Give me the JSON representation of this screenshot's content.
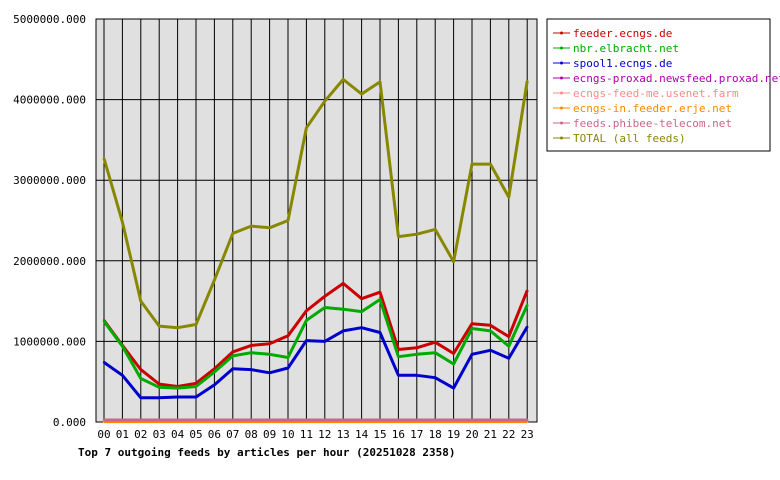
{
  "chart_data": {
    "type": "line",
    "title": "Top 7 outgoing feeds by articles per hour (20251028 2358)",
    "xlabel": "",
    "ylabel": "",
    "categories": [
      "00",
      "01",
      "02",
      "03",
      "04",
      "05",
      "06",
      "07",
      "08",
      "09",
      "10",
      "11",
      "12",
      "13",
      "14",
      "15",
      "16",
      "17",
      "18",
      "19",
      "20",
      "21",
      "22",
      "23"
    ],
    "ylim": [
      0,
      5000000
    ],
    "yticks": [
      "0.000",
      "1000000.000",
      "2000000.000",
      "3000000.000",
      "4000000.000",
      "5000000.000"
    ],
    "ytick_values": [
      0,
      1000000,
      2000000,
      3000000,
      4000000,
      5000000
    ],
    "grid": true,
    "legend_position": "right",
    "series": [
      {
        "name": "feeder.ecngs.de",
        "color": "#cc0000",
        "values": [
          1260000,
          950000,
          650000,
          470000,
          440000,
          480000,
          660000,
          870000,
          950000,
          970000,
          1070000,
          1380000,
          1560000,
          1720000,
          1530000,
          1610000,
          900000,
          920000,
          990000,
          850000,
          1220000,
          1200000,
          1060000,
          1630000
        ]
      },
      {
        "name": "nbr.elbracht.net",
        "color": "#00aa00",
        "values": [
          1250000,
          940000,
          540000,
          430000,
          420000,
          440000,
          620000,
          820000,
          860000,
          840000,
          800000,
          1260000,
          1420000,
          1400000,
          1370000,
          1520000,
          810000,
          840000,
          860000,
          720000,
          1160000,
          1130000,
          940000,
          1450000
        ]
      },
      {
        "name": "spool1.ecngs.de",
        "color": "#0000cc",
        "values": [
          740000,
          580000,
          300000,
          300000,
          310000,
          310000,
          460000,
          660000,
          650000,
          610000,
          670000,
          1010000,
          1000000,
          1130000,
          1170000,
          1110000,
          580000,
          580000,
          550000,
          420000,
          840000,
          890000,
          790000,
          1180000
        ]
      },
      {
        "name": "ecngs-proxad.newsfeed.proxad.net",
        "color": "#aa00aa",
        "values": [
          15000,
          15000,
          15000,
          15000,
          15000,
          15000,
          15000,
          15000,
          15000,
          15000,
          15000,
          15000,
          15000,
          15000,
          15000,
          15000,
          15000,
          15000,
          15000,
          15000,
          15000,
          15000,
          15000,
          15000
        ]
      },
      {
        "name": "ecngs-feed-me.usenet.farm",
        "color": "#ff8888",
        "values": [
          20000,
          20000,
          20000,
          20000,
          20000,
          20000,
          20000,
          20000,
          20000,
          20000,
          20000,
          20000,
          20000,
          20000,
          20000,
          20000,
          20000,
          20000,
          20000,
          20000,
          20000,
          20000,
          20000,
          20000
        ]
      },
      {
        "name": "ecngs-in.feeder.erje.net",
        "color": "#ff8800",
        "values": [
          5000,
          5000,
          5000,
          5000,
          5000,
          5000,
          5000,
          5000,
          5000,
          5000,
          5000,
          5000,
          5000,
          5000,
          5000,
          5000,
          5000,
          5000,
          5000,
          5000,
          5000,
          5000,
          5000,
          5000
        ]
      },
      {
        "name": "feeds.phibee-telecom.net",
        "color": "#cc6688",
        "values": [
          25000,
          25000,
          25000,
          25000,
          25000,
          25000,
          25000,
          25000,
          25000,
          25000,
          25000,
          25000,
          25000,
          25000,
          25000,
          25000,
          25000,
          25000,
          25000,
          25000,
          25000,
          25000,
          25000,
          25000
        ]
      },
      {
        "name": "TOTAL (all feeds)",
        "color": "#888800",
        "values": [
          3270000,
          2480000,
          1500000,
          1190000,
          1170000,
          1210000,
          1760000,
          2340000,
          2430000,
          2410000,
          2500000,
          3650000,
          3980000,
          4250000,
          4070000,
          4220000,
          2300000,
          2330000,
          2390000,
          1990000,
          3200000,
          3200000,
          2790000,
          4230000
        ]
      }
    ]
  }
}
